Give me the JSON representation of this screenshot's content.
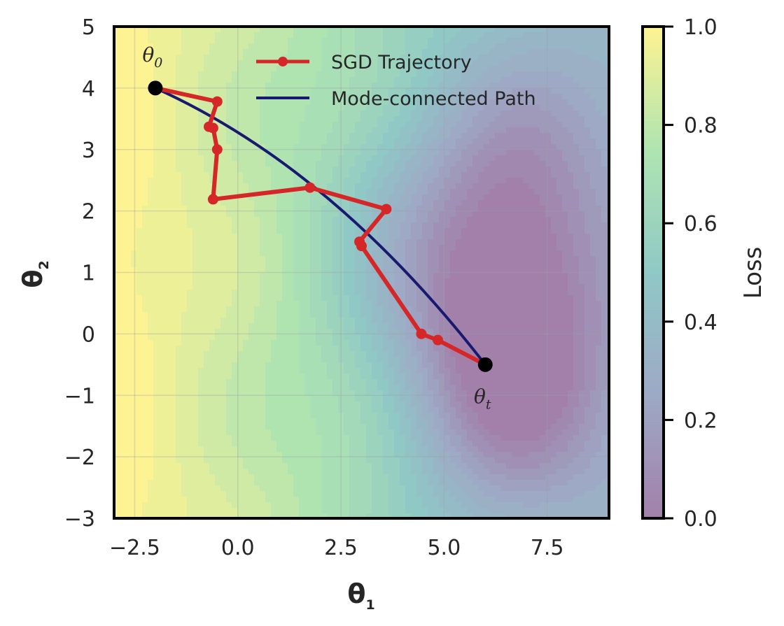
{
  "chart_data": {
    "type": "line",
    "x_label_main": "θ",
    "x_label_sub": "1",
    "y_label_main": "θ",
    "y_label_sub": "2",
    "xlim": [
      -3.0,
      9.0
    ],
    "ylim": [
      -3.0,
      5.0
    ],
    "x_ticks": [
      -2.5,
      0.0,
      2.5,
      5.0,
      7.5
    ],
    "x_tick_labels": [
      "−2.5",
      "0.0",
      "2.5",
      "5.0",
      "7.5"
    ],
    "y_ticks": [
      -3,
      -2,
      -1,
      0,
      1,
      2,
      3,
      4,
      5
    ],
    "y_tick_labels": [
      "−3",
      "−2",
      "−1",
      "0",
      "1",
      "2",
      "3",
      "4",
      "5"
    ],
    "grid": true,
    "legend_position": "top-center",
    "series": [
      {
        "name": "SGD Trajectory",
        "color": "#d62728",
        "marker": "circle",
        "points": [
          [
            -2.0,
            4.0
          ],
          [
            -0.5,
            3.78
          ],
          [
            -0.7,
            3.37
          ],
          [
            -0.6,
            3.35
          ],
          [
            -0.5,
            3.0
          ],
          [
            -0.6,
            2.19
          ],
          [
            1.75,
            2.38
          ],
          [
            3.6,
            2.03
          ],
          [
            2.95,
            1.5
          ],
          [
            3.0,
            1.43
          ],
          [
            4.45,
            0.0
          ],
          [
            4.85,
            -0.1
          ],
          [
            6.0,
            -0.5
          ]
        ]
      },
      {
        "name": "Mode-connected Path",
        "color": "#191970",
        "marker": "none",
        "curve": {
          "start": [
            -2.0,
            4.0
          ],
          "control": [
            2.3,
            2.7
          ],
          "end": [
            6.0,
            -0.5
          ]
        }
      }
    ],
    "annotations": [
      {
        "main": "θ",
        "sub": "0",
        "x": -2.0,
        "y": 4.0,
        "anchor": "above"
      },
      {
        "main": "θ",
        "sub": "t",
        "x": 6.0,
        "y": -0.5,
        "anchor": "below"
      }
    ],
    "background": {
      "type": "contourf",
      "field": "loss",
      "alpha": 0.5,
      "basins": [
        {
          "x": 6.5,
          "y": -0.6,
          "depth": 1.0
        },
        {
          "x": 6.7,
          "y": 2.4,
          "depth": 0.6
        },
        {
          "x": 4.0,
          "y": 1.5,
          "depth": 0.35
        }
      ]
    },
    "colorbar": {
      "label": "Loss",
      "min": 0.0,
      "max": 1.0,
      "ticks": [
        0.0,
        0.2,
        0.4,
        0.6,
        0.8,
        1.0
      ],
      "tick_labels": [
        "0.0",
        "0.2",
        "0.4",
        "0.6",
        "0.8",
        "1.0"
      ],
      "colormap_stops": [
        "#440154",
        "#3b528b",
        "#21918c",
        "#5ec962",
        "#fde725"
      ],
      "alpha": 0.5
    }
  }
}
